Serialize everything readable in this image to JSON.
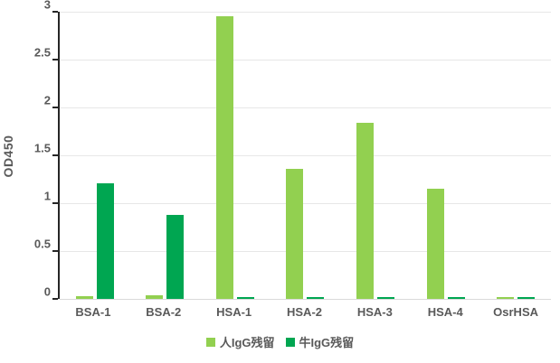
{
  "chart_data": {
    "type": "bar",
    "title": "",
    "xlabel": "",
    "ylabel": "OD450",
    "categories": [
      "BSA-1",
      "BSA-2",
      "HSA-1",
      "HSA-2",
      "HSA-3",
      "HSA-4",
      "OsrHSA"
    ],
    "series": [
      {
        "name": "人IgG残留",
        "color": "#92d050",
        "values": [
          0.03,
          0.04,
          2.95,
          1.36,
          1.84,
          1.15,
          0.02
        ]
      },
      {
        "name": "牛IgG残留",
        "color": "#00a651",
        "values": [
          1.21,
          0.88,
          0.02,
          0.02,
          0.02,
          0.02,
          0.02
        ]
      }
    ],
    "ylim": [
      0,
      3
    ],
    "ytick_values": [
      0,
      0.5,
      1,
      1.5,
      2,
      2.5,
      3
    ],
    "ytick_labels": [
      "0",
      "0.5",
      "1",
      "1.5",
      "2",
      "2.5",
      "3"
    ],
    "grid": true,
    "legend_position": "bottom"
  },
  "colors": {
    "axis_line": "#262626",
    "gridline": "#e7e7e7",
    "baseline": "#d9d9d9",
    "text": "#595959",
    "background": "#ffffff"
  }
}
